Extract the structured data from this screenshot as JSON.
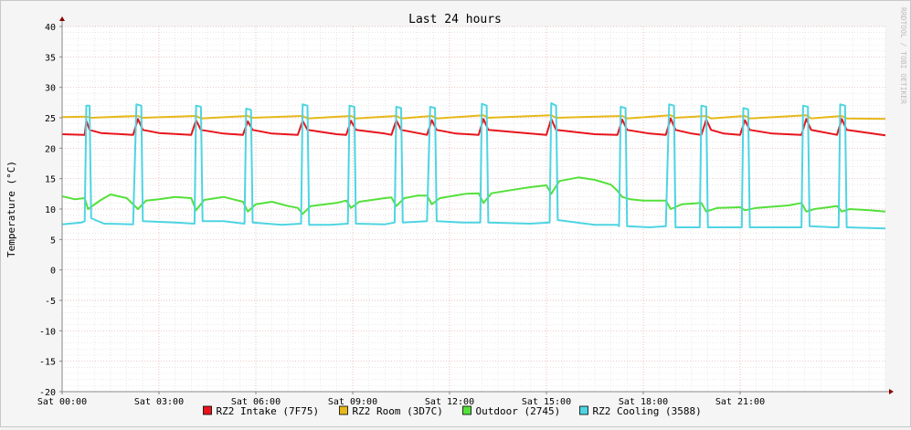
{
  "chart_data": {
    "type": "line",
    "title": "Last 24 hours",
    "ylabel": "Temperature (°C)",
    "xlabel": "",
    "watermark": "RRDTOOL / TOBI OETIKER",
    "ylim": [
      -20,
      40
    ],
    "y_ticks": [
      40,
      35,
      30,
      25,
      20,
      15,
      10,
      5,
      0,
      -5,
      -10,
      -15,
      -20
    ],
    "x_range_hours": [
      0,
      25.5
    ],
    "x_ticks": [
      {
        "hour": 0,
        "label": "Sat 00:00"
      },
      {
        "hour": 3,
        "label": "Sat 03:00"
      },
      {
        "hour": 6,
        "label": "Sat 06:00"
      },
      {
        "hour": 9,
        "label": "Sat 09:00"
      },
      {
        "hour": 12,
        "label": "Sat 12:00"
      },
      {
        "hour": 15,
        "label": "Sat 15:00"
      },
      {
        "hour": 18,
        "label": "Sat 18:00"
      },
      {
        "hour": 21,
        "label": "Sat 21:00"
      }
    ],
    "grid": true,
    "legend_position": "bottom",
    "series": [
      {
        "name": "RZ2 Intake (7F75)",
        "color": "#e8141c",
        "points": [
          [
            0,
            22.3
          ],
          [
            0.7,
            22.2
          ],
          [
            0.75,
            24.5
          ],
          [
            0.85,
            23.0
          ],
          [
            1.2,
            22.5
          ],
          [
            2.2,
            22.2
          ],
          [
            2.35,
            24.8
          ],
          [
            2.5,
            23.0
          ],
          [
            3,
            22.5
          ],
          [
            4,
            22.2
          ],
          [
            4.15,
            24.6
          ],
          [
            4.3,
            23.0
          ],
          [
            5,
            22.4
          ],
          [
            5.6,
            22.2
          ],
          [
            5.75,
            24.4
          ],
          [
            5.9,
            23.0
          ],
          [
            6.5,
            22.4
          ],
          [
            7.3,
            22.2
          ],
          [
            7.45,
            24.5
          ],
          [
            7.6,
            23.0
          ],
          [
            8.5,
            22.3
          ],
          [
            8.8,
            22.2
          ],
          [
            8.95,
            24.5
          ],
          [
            9.1,
            23.0
          ],
          [
            10,
            22.4
          ],
          [
            10.2,
            22.2
          ],
          [
            10.35,
            24.6
          ],
          [
            10.5,
            23.0
          ],
          [
            11.1,
            22.4
          ],
          [
            11.3,
            22.2
          ],
          [
            11.45,
            24.6
          ],
          [
            11.6,
            23.0
          ],
          [
            12.2,
            22.4
          ],
          [
            12.9,
            22.2
          ],
          [
            13.05,
            24.8
          ],
          [
            13.2,
            23.0
          ],
          [
            14.5,
            22.4
          ],
          [
            15.0,
            22.2
          ],
          [
            15.15,
            24.8
          ],
          [
            15.3,
            23.0
          ],
          [
            16.5,
            22.3
          ],
          [
            17.2,
            22.2
          ],
          [
            17.35,
            24.7
          ],
          [
            17.5,
            23.0
          ],
          [
            18.2,
            22.4
          ],
          [
            18.7,
            22.2
          ],
          [
            18.85,
            24.9
          ],
          [
            19.0,
            23.0
          ],
          [
            19.5,
            22.4
          ],
          [
            19.8,
            22.2
          ],
          [
            19.95,
            24.7
          ],
          [
            20.1,
            23.0
          ],
          [
            20.5,
            22.4
          ],
          [
            21.0,
            22.2
          ],
          [
            21.15,
            24.6
          ],
          [
            21.3,
            23.0
          ],
          [
            22,
            22.4
          ],
          [
            22.9,
            22.2
          ],
          [
            23.05,
            24.8
          ],
          [
            23.2,
            23.0
          ],
          [
            23.8,
            22.4
          ],
          [
            24.0,
            22.2
          ],
          [
            24.15,
            24.8
          ],
          [
            24.3,
            23.0
          ],
          [
            25.5,
            22.1
          ]
        ]
      },
      {
        "name": "RZ2 Room (3D7C)",
        "color": "#e6b81a",
        "points": [
          [
            0,
            25.1
          ],
          [
            0.75,
            25.2
          ],
          [
            0.9,
            25.0
          ],
          [
            2.35,
            25.3
          ],
          [
            2.5,
            25.0
          ],
          [
            4.15,
            25.3
          ],
          [
            4.3,
            24.9
          ],
          [
            5.75,
            25.3
          ],
          [
            5.9,
            25.0
          ],
          [
            7.45,
            25.3
          ],
          [
            7.6,
            24.9
          ],
          [
            8.95,
            25.3
          ],
          [
            9.1,
            24.9
          ],
          [
            10.35,
            25.3
          ],
          [
            10.5,
            24.9
          ],
          [
            11.45,
            25.3
          ],
          [
            11.6,
            24.9
          ],
          [
            13.05,
            25.4
          ],
          [
            13.2,
            25.0
          ],
          [
            15.15,
            25.4
          ],
          [
            15.3,
            25.0
          ],
          [
            17.35,
            25.3
          ],
          [
            17.5,
            24.9
          ],
          [
            18.85,
            25.4
          ],
          [
            19.0,
            25.0
          ],
          [
            19.95,
            25.3
          ],
          [
            20.1,
            24.9
          ],
          [
            21.15,
            25.3
          ],
          [
            21.3,
            24.9
          ],
          [
            23.05,
            25.4
          ],
          [
            23.2,
            24.9
          ],
          [
            24.15,
            25.3
          ],
          [
            24.3,
            24.9
          ],
          [
            25.5,
            24.8
          ]
        ]
      },
      {
        "name": "Outdoor (2745)",
        "color": "#54e03a",
        "points": [
          [
            0,
            12.1
          ],
          [
            0.4,
            11.6
          ],
          [
            0.7,
            11.8
          ],
          [
            0.8,
            10.0
          ],
          [
            1.2,
            11.5
          ],
          [
            1.5,
            12.4
          ],
          [
            2.0,
            11.8
          ],
          [
            2.35,
            10.0
          ],
          [
            2.6,
            11.4
          ],
          [
            3.0,
            11.6
          ],
          [
            3.5,
            12.0
          ],
          [
            4.0,
            11.8
          ],
          [
            4.15,
            9.8
          ],
          [
            4.4,
            11.5
          ],
          [
            5.0,
            12.0
          ],
          [
            5.6,
            11.2
          ],
          [
            5.75,
            9.6
          ],
          [
            6.0,
            10.8
          ],
          [
            6.5,
            11.2
          ],
          [
            7.0,
            10.5
          ],
          [
            7.3,
            10.2
          ],
          [
            7.45,
            9.2
          ],
          [
            7.7,
            10.5
          ],
          [
            8.5,
            11.0
          ],
          [
            8.8,
            11.4
          ],
          [
            8.95,
            10.2
          ],
          [
            9.2,
            11.2
          ],
          [
            10.0,
            11.8
          ],
          [
            10.2,
            11.9
          ],
          [
            10.35,
            10.5
          ],
          [
            10.6,
            11.8
          ],
          [
            11.0,
            12.2
          ],
          [
            11.3,
            12.2
          ],
          [
            11.45,
            10.8
          ],
          [
            11.7,
            11.8
          ],
          [
            12.5,
            12.5
          ],
          [
            12.9,
            12.6
          ],
          [
            13.05,
            11.0
          ],
          [
            13.3,
            12.6
          ],
          [
            14.0,
            13.2
          ],
          [
            14.5,
            13.6
          ],
          [
            15.0,
            13.9
          ],
          [
            15.15,
            12.5
          ],
          [
            15.4,
            14.6
          ],
          [
            16.0,
            15.2
          ],
          [
            16.5,
            14.8
          ],
          [
            17.0,
            14.0
          ],
          [
            17.2,
            13.0
          ],
          [
            17.35,
            12.0
          ],
          [
            17.6,
            11.6
          ],
          [
            18.0,
            11.4
          ],
          [
            18.7,
            11.4
          ],
          [
            18.85,
            10.0
          ],
          [
            19.2,
            10.8
          ],
          [
            19.8,
            11.0
          ],
          [
            19.95,
            9.6
          ],
          [
            20.3,
            10.2
          ],
          [
            21.0,
            10.3
          ],
          [
            21.15,
            9.8
          ],
          [
            21.5,
            10.2
          ],
          [
            22.5,
            10.6
          ],
          [
            22.9,
            11.0
          ],
          [
            23.05,
            9.6
          ],
          [
            23.3,
            10.0
          ],
          [
            24.0,
            10.5
          ],
          [
            24.15,
            9.6
          ],
          [
            24.4,
            10.0
          ],
          [
            25.0,
            9.8
          ],
          [
            25.5,
            9.6
          ]
        ]
      },
      {
        "name": "RZ2 Cooling (3588)",
        "color": "#4ed4e2",
        "points": [
          [
            0,
            7.5
          ],
          [
            0.6,
            7.8
          ],
          [
            0.7,
            8.0
          ],
          [
            0.75,
            27.0
          ],
          [
            0.85,
            27.0
          ],
          [
            0.9,
            8.5
          ],
          [
            1.3,
            7.6
          ],
          [
            2.2,
            7.5
          ],
          [
            2.3,
            27.2
          ],
          [
            2.45,
            27.0
          ],
          [
            2.5,
            8.0
          ],
          [
            3.5,
            7.8
          ],
          [
            4.1,
            7.6
          ],
          [
            4.15,
            27.0
          ],
          [
            4.3,
            26.8
          ],
          [
            4.35,
            8.0
          ],
          [
            5.0,
            8.0
          ],
          [
            5.65,
            7.6
          ],
          [
            5.7,
            26.5
          ],
          [
            5.85,
            26.3
          ],
          [
            5.9,
            7.8
          ],
          [
            6.8,
            7.4
          ],
          [
            7.4,
            7.6
          ],
          [
            7.45,
            27.2
          ],
          [
            7.6,
            27.0
          ],
          [
            7.65,
            7.4
          ],
          [
            8.3,
            7.4
          ],
          [
            8.85,
            7.6
          ],
          [
            8.9,
            27.0
          ],
          [
            9.05,
            26.8
          ],
          [
            9.1,
            7.6
          ],
          [
            10.0,
            7.5
          ],
          [
            10.3,
            7.8
          ],
          [
            10.35,
            26.8
          ],
          [
            10.5,
            26.6
          ],
          [
            10.55,
            7.8
          ],
          [
            11.3,
            8.0
          ],
          [
            11.4,
            26.8
          ],
          [
            11.55,
            26.6
          ],
          [
            11.6,
            8.0
          ],
          [
            12.4,
            7.8
          ],
          [
            12.95,
            7.8
          ],
          [
            13.0,
            27.3
          ],
          [
            13.15,
            27.0
          ],
          [
            13.2,
            7.8
          ],
          [
            14.5,
            7.6
          ],
          [
            15.1,
            7.8
          ],
          [
            15.15,
            27.4
          ],
          [
            15.3,
            27.0
          ],
          [
            15.35,
            8.2
          ],
          [
            16.5,
            7.4
          ],
          [
            17.2,
            7.4
          ],
          [
            17.25,
            7.2
          ],
          [
            17.3,
            26.8
          ],
          [
            17.45,
            26.6
          ],
          [
            17.5,
            7.2
          ],
          [
            18.2,
            7.0
          ],
          [
            18.7,
            7.2
          ],
          [
            18.8,
            27.2
          ],
          [
            18.95,
            27.0
          ],
          [
            19.0,
            7.0
          ],
          [
            19.75,
            7.0
          ],
          [
            19.8,
            27.0
          ],
          [
            19.95,
            26.8
          ],
          [
            20.0,
            7.0
          ],
          [
            20.8,
            7.0
          ],
          [
            21.05,
            7.0
          ],
          [
            21.1,
            26.6
          ],
          [
            21.25,
            26.4
          ],
          [
            21.3,
            7.0
          ],
          [
            22.3,
            7.0
          ],
          [
            22.9,
            7.0
          ],
          [
            22.95,
            27.0
          ],
          [
            23.1,
            26.8
          ],
          [
            23.15,
            7.2
          ],
          [
            23.9,
            7.0
          ],
          [
            24.05,
            7.0
          ],
          [
            24.1,
            27.2
          ],
          [
            24.25,
            27.0
          ],
          [
            24.3,
            7.0
          ],
          [
            25.5,
            6.8
          ]
        ]
      }
    ]
  }
}
